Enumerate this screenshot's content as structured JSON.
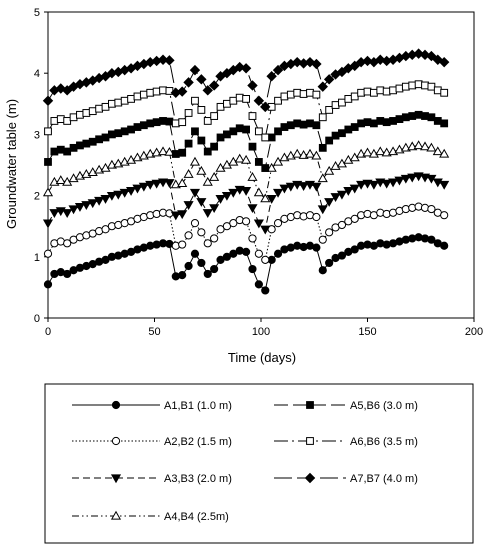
{
  "chart_data": {
    "type": "line",
    "xlabel": "Time (days)",
    "ylabel": "Groundwater table (m)",
    "xlim": [
      0,
      200
    ],
    "ylim": [
      0,
      5
    ],
    "x_ticks": [
      "0",
      "50",
      "100",
      "150",
      "200"
    ],
    "y_ticks": [
      "0",
      "1",
      "2",
      "3",
      "4",
      "5"
    ],
    "grid": false,
    "legend_position": "below",
    "x": [
      0,
      3,
      6,
      9,
      12,
      15,
      18,
      21,
      24,
      27,
      30,
      33,
      36,
      39,
      42,
      45,
      48,
      51,
      54,
      57,
      60,
      63,
      66,
      69,
      72,
      75,
      78,
      81,
      84,
      87,
      90,
      93,
      96,
      99,
      102,
      105,
      108,
      111,
      114,
      117,
      120,
      123,
      126,
      129,
      132,
      135,
      138,
      141,
      144,
      147,
      150,
      153,
      156,
      159,
      162,
      165,
      168,
      171,
      174,
      177,
      180,
      183,
      186
    ],
    "series": [
      {
        "name": "A1,B1 (1.0 m)",
        "marker": "circle-filled",
        "dash": "",
        "offset": 0.0,
        "values": [
          0.55,
          0.72,
          0.75,
          0.72,
          0.78,
          0.82,
          0.85,
          0.88,
          0.92,
          0.95,
          1.0,
          1.02,
          1.05,
          1.08,
          1.12,
          1.15,
          1.18,
          1.2,
          1.22,
          1.21,
          0.68,
          0.7,
          0.85,
          1.05,
          0.9,
          0.72,
          0.8,
          0.95,
          1.0,
          1.05,
          1.1,
          1.08,
          0.8,
          0.55,
          0.45,
          0.95,
          1.05,
          1.12,
          1.15,
          1.18,
          1.16,
          1.18,
          1.15,
          0.78,
          0.9,
          0.98,
          1.02,
          1.08,
          1.12,
          1.18,
          1.2,
          1.18,
          1.22,
          1.2,
          1.22,
          1.25,
          1.28,
          1.3,
          1.32,
          1.3,
          1.28,
          1.22,
          1.18
        ]
      },
      {
        "name": "A2,B2 (1.5 m)",
        "marker": "circle-open",
        "dash": "1.5,2",
        "offset": 0.5,
        "values": [
          0.55,
          0.72,
          0.75,
          0.72,
          0.78,
          0.82,
          0.85,
          0.88,
          0.92,
          0.95,
          1.0,
          1.02,
          1.05,
          1.08,
          1.12,
          1.15,
          1.18,
          1.2,
          1.22,
          1.21,
          0.68,
          0.7,
          0.85,
          1.05,
          0.9,
          0.72,
          0.8,
          0.95,
          1.0,
          1.05,
          1.1,
          1.08,
          0.8,
          0.55,
          0.45,
          0.95,
          1.05,
          1.12,
          1.15,
          1.18,
          1.16,
          1.18,
          1.15,
          0.78,
          0.9,
          0.98,
          1.02,
          1.08,
          1.12,
          1.18,
          1.2,
          1.18,
          1.22,
          1.2,
          1.22,
          1.25,
          1.28,
          1.3,
          1.32,
          1.3,
          1.28,
          1.22,
          1.18
        ]
      },
      {
        "name": "A3,B3 (2.0 m)",
        "marker": "triangle-down-filled",
        "dash": "7,4",
        "offset": 1.0,
        "values": [
          0.55,
          0.72,
          0.75,
          0.72,
          0.78,
          0.82,
          0.85,
          0.88,
          0.92,
          0.95,
          1.0,
          1.02,
          1.05,
          1.08,
          1.12,
          1.15,
          1.18,
          1.2,
          1.22,
          1.21,
          0.68,
          0.7,
          0.85,
          1.05,
          0.9,
          0.72,
          0.8,
          0.95,
          1.0,
          1.05,
          1.1,
          1.08,
          0.8,
          0.55,
          0.45,
          0.95,
          1.05,
          1.12,
          1.15,
          1.18,
          1.16,
          1.18,
          1.15,
          0.78,
          0.9,
          0.98,
          1.02,
          1.08,
          1.12,
          1.18,
          1.2,
          1.18,
          1.22,
          1.2,
          1.22,
          1.25,
          1.28,
          1.3,
          1.32,
          1.3,
          1.28,
          1.22,
          1.18
        ]
      },
      {
        "name": "A4,B4 (2.5m)",
        "marker": "triangle-up-open",
        "dash": "7,3,1.5,3,1.5,3",
        "offset": 1.5,
        "values": [
          0.55,
          0.72,
          0.75,
          0.72,
          0.78,
          0.82,
          0.85,
          0.88,
          0.92,
          0.95,
          1.0,
          1.02,
          1.05,
          1.08,
          1.12,
          1.15,
          1.18,
          1.2,
          1.22,
          1.21,
          0.68,
          0.7,
          0.85,
          1.05,
          0.9,
          0.72,
          0.8,
          0.95,
          1.0,
          1.05,
          1.1,
          1.08,
          0.8,
          0.55,
          0.45,
          0.95,
          1.05,
          1.12,
          1.15,
          1.18,
          1.16,
          1.18,
          1.15,
          0.78,
          0.9,
          0.98,
          1.02,
          1.08,
          1.12,
          1.18,
          1.2,
          1.18,
          1.22,
          1.2,
          1.22,
          1.25,
          1.28,
          1.3,
          1.32,
          1.3,
          1.28,
          1.22,
          1.18
        ]
      },
      {
        "name": "A5,B6 (3.0 m)",
        "marker": "square-filled",
        "dash": "14,5",
        "offset": 2.0,
        "values": [
          0.55,
          0.72,
          0.75,
          0.72,
          0.78,
          0.82,
          0.85,
          0.88,
          0.92,
          0.95,
          1.0,
          1.02,
          1.05,
          1.08,
          1.12,
          1.15,
          1.18,
          1.2,
          1.22,
          1.21,
          0.68,
          0.7,
          0.85,
          1.05,
          0.9,
          0.72,
          0.8,
          0.95,
          1.0,
          1.05,
          1.1,
          1.08,
          0.8,
          0.55,
          0.45,
          0.95,
          1.05,
          1.12,
          1.15,
          1.18,
          1.16,
          1.18,
          1.15,
          0.78,
          0.9,
          0.98,
          1.02,
          1.08,
          1.12,
          1.18,
          1.2,
          1.18,
          1.22,
          1.2,
          1.22,
          1.25,
          1.28,
          1.3,
          1.32,
          1.3,
          1.28,
          1.22,
          1.18
        ]
      },
      {
        "name": "A6,B6 (3.5 m)",
        "marker": "square-open",
        "dash": "14,4,2,4",
        "offset": 2.5,
        "values": [
          0.55,
          0.72,
          0.75,
          0.72,
          0.78,
          0.82,
          0.85,
          0.88,
          0.92,
          0.95,
          1.0,
          1.02,
          1.05,
          1.08,
          1.12,
          1.15,
          1.18,
          1.2,
          1.22,
          1.21,
          0.68,
          0.7,
          0.85,
          1.05,
          0.9,
          0.72,
          0.8,
          0.95,
          1.0,
          1.05,
          1.1,
          1.08,
          0.8,
          0.55,
          0.45,
          0.95,
          1.05,
          1.12,
          1.15,
          1.18,
          1.16,
          1.18,
          1.15,
          0.78,
          0.9,
          0.98,
          1.02,
          1.08,
          1.12,
          1.18,
          1.2,
          1.18,
          1.22,
          1.2,
          1.22,
          1.25,
          1.28,
          1.3,
          1.32,
          1.3,
          1.28,
          1.22,
          1.18
        ]
      },
      {
        "name": "A7,B7 (4.0 m)",
        "marker": "diamond-filled",
        "dash": "18,5",
        "offset": 3.0,
        "values": [
          0.55,
          0.72,
          0.75,
          0.72,
          0.78,
          0.82,
          0.85,
          0.88,
          0.92,
          0.95,
          1.0,
          1.02,
          1.05,
          1.08,
          1.12,
          1.15,
          1.18,
          1.2,
          1.22,
          1.21,
          0.68,
          0.7,
          0.85,
          1.05,
          0.9,
          0.72,
          0.8,
          0.95,
          1.0,
          1.05,
          1.1,
          1.08,
          0.8,
          0.55,
          0.45,
          0.95,
          1.05,
          1.12,
          1.15,
          1.18,
          1.16,
          1.18,
          1.15,
          0.78,
          0.9,
          0.98,
          1.02,
          1.08,
          1.12,
          1.18,
          1.2,
          1.18,
          1.22,
          1.2,
          1.22,
          1.25,
          1.28,
          1.3,
          1.32,
          1.3,
          1.28,
          1.22,
          1.18
        ]
      }
    ]
  }
}
